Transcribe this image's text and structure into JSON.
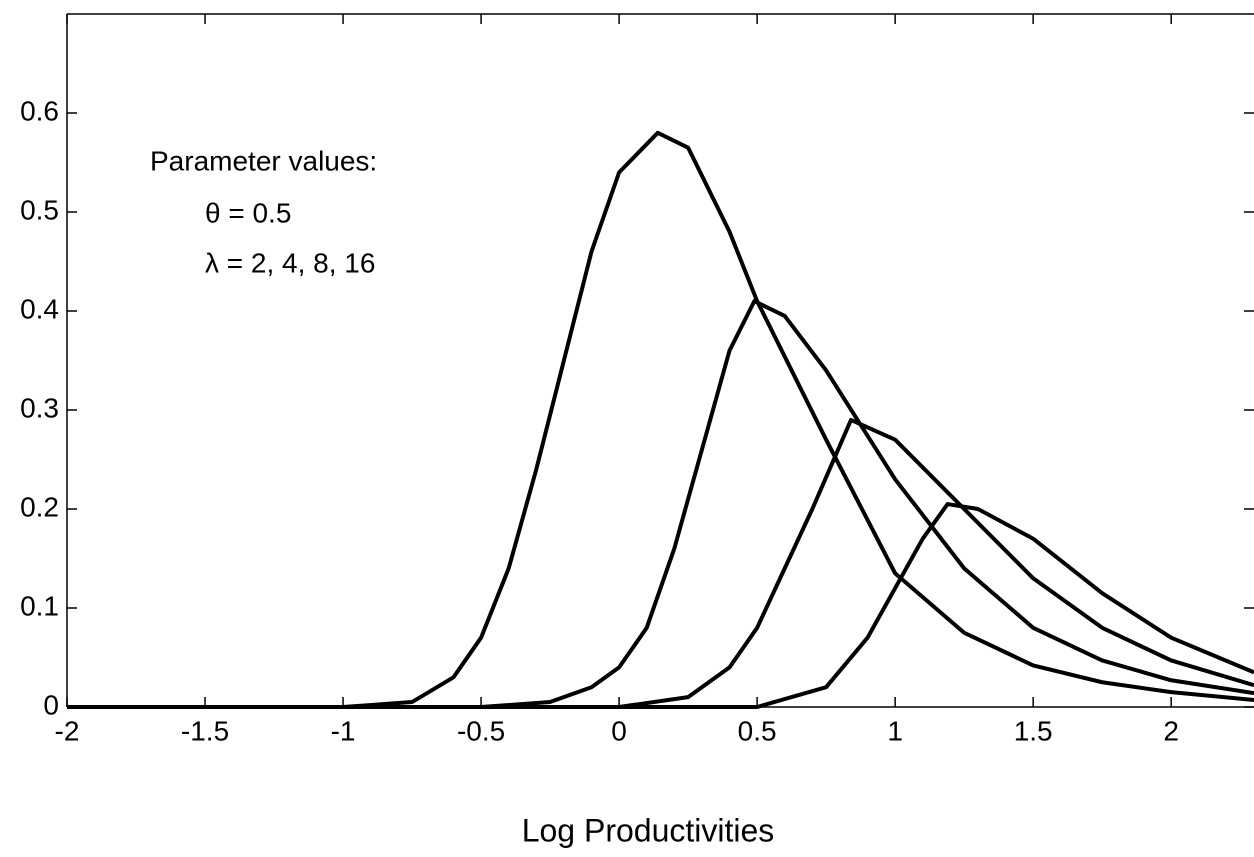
{
  "chart_data": {
    "type": "line",
    "xlabel": "Log Productivities",
    "annotations": [
      "Parameter values:",
      "θ = 0.5",
      "λ = 2, 4, 8, 16"
    ],
    "xlim": [
      -2,
      2.3
    ],
    "ylim": [
      0,
      0.7
    ],
    "xticks": [
      -2,
      -1.5,
      -1,
      -0.5,
      0,
      0.5,
      1,
      1.5,
      2
    ],
    "yticks": [
      0,
      0.1,
      0.2,
      0.3,
      0.4,
      0.5,
      0.6
    ],
    "series": [
      {
        "color": "#000000",
        "x": [
          -2,
          -1,
          -0.75,
          -0.6,
          -0.5,
          -0.4,
          -0.3,
          -0.2,
          -0.1,
          0,
          0.14,
          0.25,
          0.4,
          0.5,
          0.75,
          1,
          1.25,
          1.5,
          1.75,
          2,
          2.3
        ],
        "values": [
          0,
          0,
          0.005,
          0.03,
          0.07,
          0.14,
          0.24,
          0.35,
          0.46,
          0.54,
          0.58,
          0.565,
          0.48,
          0.41,
          0.27,
          0.135,
          0.075,
          0.042,
          0.025,
          0.015,
          0.007
        ]
      },
      {
        "color": "#000000",
        "x": [
          -2,
          -0.5,
          -0.25,
          -0.1,
          0,
          0.1,
          0.2,
          0.3,
          0.4,
          0.49,
          0.6,
          0.75,
          1,
          1.25,
          1.5,
          1.75,
          2,
          2.3
        ],
        "values": [
          0,
          0,
          0.005,
          0.02,
          0.04,
          0.08,
          0.16,
          0.26,
          0.36,
          0.41,
          0.395,
          0.34,
          0.23,
          0.14,
          0.08,
          0.047,
          0.027,
          0.014
        ]
      },
      {
        "color": "#000000",
        "x": [
          -2,
          0,
          0.25,
          0.4,
          0.5,
          0.6,
          0.7,
          0.84,
          1,
          1.25,
          1.5,
          1.75,
          2,
          2.3
        ],
        "values": [
          0,
          0,
          0.01,
          0.04,
          0.08,
          0.14,
          0.2,
          0.29,
          0.27,
          0.2,
          0.13,
          0.08,
          0.047,
          0.022
        ]
      },
      {
        "color": "#000000",
        "x": [
          -2,
          0.5,
          0.75,
          0.9,
          1,
          1.1,
          1.19,
          1.3,
          1.5,
          1.75,
          2,
          2.3
        ],
        "values": [
          0,
          0,
          0.02,
          0.07,
          0.12,
          0.17,
          0.205,
          0.2,
          0.17,
          0.115,
          0.07,
          0.035
        ]
      }
    ]
  }
}
